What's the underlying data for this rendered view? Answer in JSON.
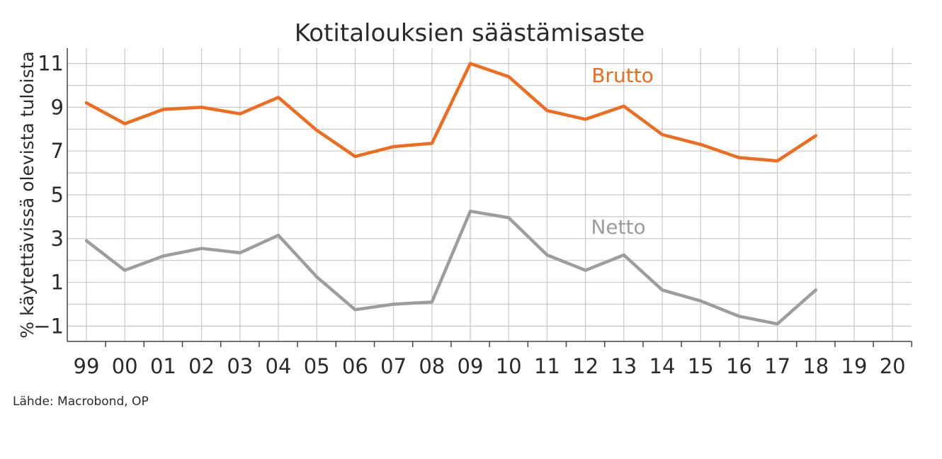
{
  "chart_data": {
    "type": "line",
    "title": "Kotitalouksien säästämisaste",
    "ylabel": "% käytettävissä olevista tuloista",
    "xlabel": "",
    "source": "Lähde: Macrobond, OP",
    "x": [
      "99",
      "00",
      "01",
      "02",
      "03",
      "04",
      "05",
      "06",
      "07",
      "08",
      "09",
      "10",
      "11",
      "12",
      "13",
      "14",
      "15",
      "16",
      "17",
      "18",
      "19",
      "20"
    ],
    "ylim": [
      -1.7,
      11.7
    ],
    "yticks": [
      -1,
      1,
      3,
      5,
      7,
      9,
      11
    ],
    "grid": true,
    "series": [
      {
        "name": "Brutto",
        "color": "#f26a1b",
        "values": [
          9.2,
          8.25,
          8.9,
          9.0,
          8.7,
          9.45,
          7.95,
          6.75,
          7.2,
          7.35,
          11.0,
          10.4,
          8.85,
          8.45,
          9.05,
          7.75,
          7.3,
          6.7,
          6.55,
          7.7,
          null,
          null
        ]
      },
      {
        "name": "Netto",
        "color": "#9d9d9d",
        "values": [
          2.9,
          1.55,
          2.2,
          2.55,
          2.35,
          3.15,
          1.25,
          -0.25,
          0.0,
          0.1,
          4.25,
          3.95,
          2.25,
          1.55,
          2.25,
          0.65,
          0.15,
          -0.55,
          -0.9,
          0.65,
          null,
          null
        ]
      }
    ]
  }
}
